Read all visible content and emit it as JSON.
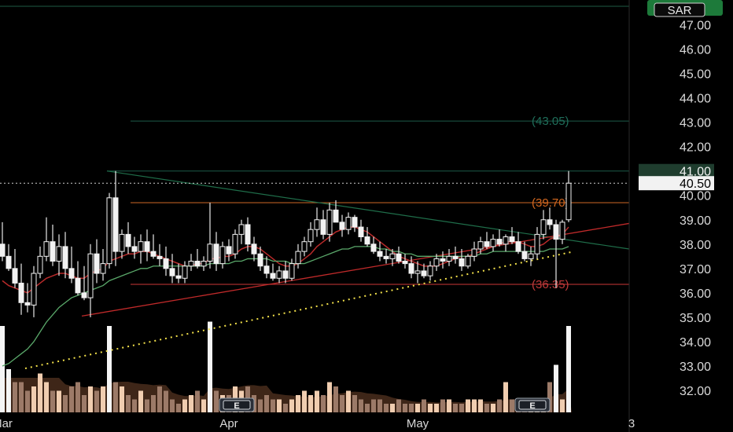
{
  "chart_data": {
    "type": "candlestick",
    "currency": "SAR",
    "ylim": [
      31.0,
      48.0
    ],
    "price_ticks": [
      "32.00",
      "33.00",
      "34.00",
      "35.00",
      "36.00",
      "37.00",
      "38.00",
      "39.00",
      "40.00",
      "41.00",
      "42.00",
      "43.00",
      "44.00",
      "45.00",
      "46.00",
      "47.00"
    ],
    "x_tick_labels": [
      {
        "label": "Mar",
        "bar": 0
      },
      {
        "label": "Apr",
        "bar": 36
      },
      {
        "label": "May",
        "bar": 66
      },
      {
        "label": "3",
        "bar": 100
      }
    ],
    "last_price": "40.50",
    "resistance_label": "41.00",
    "level_labels": [
      {
        "text": "(43.05)",
        "value": 43.05,
        "color": "#1f6e5a"
      },
      {
        "text": "(39.70)",
        "value": 39.7,
        "color": "#d4681f"
      },
      {
        "text": "(36.35)",
        "value": 36.35,
        "color": "#c23a3a"
      }
    ],
    "top_level": 47.75,
    "candles": [
      [
        38.0,
        38.9,
        37.3,
        37.5
      ],
      [
        37.5,
        38.0,
        36.9,
        37.0
      ],
      [
        37.0,
        37.8,
        36.2,
        36.4
      ],
      [
        36.4,
        37.2,
        35.1,
        35.6
      ],
      [
        35.6,
        36.4,
        35.2,
        35.5
      ],
      [
        35.5,
        37.1,
        35.0,
        36.8
      ],
      [
        36.8,
        37.9,
        36.6,
        37.5
      ],
      [
        37.5,
        39.1,
        37.3,
        38.1
      ],
      [
        38.1,
        38.8,
        37.1,
        37.3
      ],
      [
        37.3,
        38.4,
        36.7,
        37.9
      ],
      [
        37.9,
        38.5,
        36.6,
        37.0
      ],
      [
        37.0,
        37.9,
        36.4,
        36.6
      ],
      [
        36.6,
        37.3,
        35.9,
        36.0
      ],
      [
        36.0,
        37.1,
        35.7,
        35.8
      ],
      [
        35.8,
        38.0,
        35.0,
        37.6
      ],
      [
        37.6,
        38.2,
        36.4,
        36.8
      ],
      [
        36.8,
        37.8,
        36.5,
        37.2
      ],
      [
        37.2,
        40.1,
        37.0,
        39.9
      ],
      [
        39.9,
        41.0,
        37.1,
        37.7
      ],
      [
        37.7,
        38.6,
        37.4,
        38.4
      ],
      [
        38.4,
        38.9,
        37.6,
        37.9
      ],
      [
        37.9,
        38.3,
        37.4,
        37.7
      ],
      [
        37.7,
        38.4,
        37.2,
        38.1
      ],
      [
        38.1,
        38.6,
        37.3,
        37.7
      ],
      [
        37.7,
        38.4,
        37.4,
        37.5
      ],
      [
        37.5,
        38.0,
        37.1,
        37.4
      ],
      [
        37.4,
        37.9,
        36.7,
        37.0
      ],
      [
        37.0,
        37.6,
        36.4,
        36.7
      ],
      [
        36.7,
        37.2,
        36.4,
        36.6
      ],
      [
        36.6,
        37.3,
        36.4,
        37.1
      ],
      [
        37.1,
        37.6,
        36.9,
        37.3
      ],
      [
        37.3,
        37.8,
        37.0,
        37.1
      ],
      [
        37.1,
        37.5,
        36.9,
        37.3
      ],
      [
        37.3,
        39.7,
        37.0,
        38.0
      ],
      [
        38.0,
        38.5,
        36.9,
        37.2
      ],
      [
        37.2,
        38.1,
        37.0,
        37.9
      ],
      [
        37.9,
        38.2,
        37.3,
        37.6
      ],
      [
        37.6,
        38.6,
        37.4,
        38.4
      ],
      [
        38.4,
        39.0,
        38.0,
        38.8
      ],
      [
        38.8,
        39.1,
        37.7,
        38.0
      ],
      [
        38.0,
        38.3,
        37.3,
        37.6
      ],
      [
        37.6,
        37.9,
        36.9,
        37.1
      ],
      [
        37.1,
        37.5,
        36.6,
        36.8
      ],
      [
        36.8,
        37.2,
        36.5,
        36.6
      ],
      [
        36.6,
        37.1,
        36.4,
        36.9
      ],
      [
        36.9,
        37.3,
        36.4,
        36.6
      ],
      [
        36.6,
        37.4,
        36.5,
        37.2
      ],
      [
        37.2,
        38.0,
        37.0,
        37.7
      ],
      [
        37.7,
        38.3,
        37.5,
        38.1
      ],
      [
        38.1,
        38.9,
        37.9,
        38.6
      ],
      [
        38.6,
        39.5,
        38.3,
        39.0
      ],
      [
        39.0,
        39.4,
        38.2,
        38.4
      ],
      [
        38.4,
        39.7,
        38.1,
        39.4
      ],
      [
        39.4,
        39.8,
        38.9,
        38.9
      ],
      [
        38.9,
        39.2,
        38.3,
        38.6
      ],
      [
        38.6,
        39.3,
        38.4,
        39.1
      ],
      [
        39.1,
        39.2,
        38.5,
        38.7
      ],
      [
        38.7,
        39.0,
        38.1,
        38.3
      ],
      [
        38.3,
        38.7,
        37.9,
        38.0
      ],
      [
        38.0,
        38.3,
        37.6,
        37.7
      ],
      [
        37.7,
        38.1,
        37.3,
        37.5
      ],
      [
        37.5,
        37.8,
        37.2,
        37.4
      ],
      [
        37.4,
        37.8,
        37.1,
        37.6
      ],
      [
        37.6,
        37.9,
        37.2,
        37.3
      ],
      [
        37.3,
        37.6,
        37.0,
        37.2
      ],
      [
        37.2,
        37.5,
        36.6,
        36.8
      ],
      [
        36.8,
        37.3,
        36.4,
        36.9
      ],
      [
        36.9,
        37.2,
        36.6,
        36.7
      ],
      [
        36.7,
        37.3,
        36.5,
        37.1
      ],
      [
        37.1,
        37.6,
        36.9,
        37.4
      ],
      [
        37.4,
        37.7,
        37.0,
        37.3
      ],
      [
        37.3,
        37.8,
        37.1,
        37.5
      ],
      [
        37.5,
        37.9,
        37.2,
        37.4
      ],
      [
        37.4,
        37.8,
        36.9,
        37.1
      ],
      [
        37.1,
        37.6,
        37.0,
        37.5
      ],
      [
        37.5,
        38.1,
        37.3,
        37.8
      ],
      [
        37.8,
        38.3,
        37.6,
        38.1
      ],
      [
        38.1,
        38.5,
        37.8,
        37.9
      ],
      [
        37.9,
        38.4,
        37.7,
        38.2
      ],
      [
        38.2,
        38.6,
        37.9,
        38.0
      ],
      [
        38.0,
        38.4,
        37.7,
        38.3
      ],
      [
        38.3,
        38.7,
        38.0,
        38.1
      ],
      [
        38.1,
        38.5,
        37.6,
        37.7
      ],
      [
        37.7,
        38.1,
        37.3,
        37.4
      ],
      [
        37.4,
        37.9,
        37.1,
        37.6
      ],
      [
        37.6,
        38.7,
        37.4,
        38.4
      ],
      [
        38.4,
        39.4,
        38.2,
        39.0
      ],
      [
        39.0,
        39.5,
        38.6,
        38.8
      ],
      [
        38.8,
        39.0,
        36.2,
        38.2
      ],
      [
        38.2,
        39.0,
        38.0,
        38.9
      ],
      [
        39.0,
        41.0,
        38.9,
        40.5
      ]
    ],
    "ma_fast": [
      36.5,
      36.3,
      36.2,
      36.1,
      36.0,
      36.2,
      36.4,
      36.6,
      36.7,
      36.8,
      36.8,
      36.7,
      36.6,
      36.6,
      36.8,
      36.9,
      37.0,
      37.3,
      37.4,
      37.5,
      37.6,
      37.6,
      37.7,
      37.7,
      37.6,
      37.5,
      37.4,
      37.3,
      37.2,
      37.1,
      37.1,
      37.2,
      37.2,
      37.4,
      37.4,
      37.5,
      37.5,
      37.6,
      37.8,
      37.9,
      37.9,
      37.8,
      37.6,
      37.4,
      37.2,
      37.1,
      37.1,
      37.2,
      37.4,
      37.6,
      37.9,
      38.1,
      38.3,
      38.5,
      38.6,
      38.7,
      38.7,
      38.6,
      38.5,
      38.3,
      38.1,
      37.9,
      37.7,
      37.5,
      37.4,
      37.3,
      37.2,
      37.1,
      37.1,
      37.1,
      37.2,
      37.3,
      37.4,
      37.5,
      37.5,
      37.6,
      37.7,
      37.8,
      37.9,
      38.0,
      38.1,
      38.1,
      38.1,
      38.0,
      37.9,
      37.9,
      38.0,
      38.2,
      38.3,
      38.4,
      38.7
    ],
    "ma_slow": [
      33.0,
      33.1,
      33.3,
      33.5,
      33.7,
      34.0,
      34.4,
      34.8,
      35.1,
      35.4,
      35.6,
      35.8,
      35.9,
      36.0,
      36.1,
      36.2,
      36.3,
      36.5,
      36.6,
      36.7,
      36.8,
      36.9,
      37.0,
      37.0,
      37.1,
      37.1,
      37.1,
      37.1,
      37.1,
      37.1,
      37.1,
      37.1,
      37.1,
      37.2,
      37.2,
      37.2,
      37.2,
      37.3,
      37.3,
      37.4,
      37.4,
      37.4,
      37.4,
      37.3,
      37.3,
      37.3,
      37.2,
      37.2,
      37.2,
      37.3,
      37.4,
      37.5,
      37.6,
      37.7,
      37.8,
      37.8,
      37.9,
      37.9,
      37.9,
      37.9,
      37.8,
      37.8,
      37.7,
      37.7,
      37.6,
      37.6,
      37.5,
      37.5,
      37.5,
      37.5,
      37.5,
      37.5,
      37.5,
      37.5,
      37.5,
      37.5,
      37.6,
      37.6,
      37.7,
      37.7,
      37.7,
      37.7,
      37.7,
      37.7,
      37.7,
      37.7,
      37.7,
      37.8,
      37.8,
      37.8,
      37.9
    ],
    "volumes": [
      1.0,
      0.5,
      0.35,
      0.35,
      0.25,
      0.3,
      0.45,
      0.35,
      0.25,
      0.25,
      0.2,
      0.3,
      0.35,
      0.2,
      0.3,
      0.25,
      0.3,
      1.0,
      0.35,
      0.3,
      0.2,
      0.15,
      0.25,
      0.15,
      0.2,
      0.3,
      0.25,
      0.15,
      0.1,
      0.15,
      0.2,
      0.25,
      0.15,
      1.05,
      0.25,
      0.2,
      0.2,
      0.3,
      0.25,
      0.3,
      0.2,
      0.15,
      0.2,
      0.15,
      0.15,
      0.1,
      0.15,
      0.2,
      0.25,
      0.2,
      0.25,
      0.2,
      0.35,
      0.3,
      0.2,
      0.25,
      0.2,
      0.15,
      0.1,
      0.15,
      0.15,
      0.1,
      0.1,
      0.15,
      0.1,
      0.1,
      0.1,
      0.15,
      0.1,
      0.1,
      0.15,
      0.15,
      0.1,
      0.1,
      0.15,
      0.15,
      0.15,
      0.1,
      0.1,
      0.15,
      0.35,
      0.15,
      0.15,
      0.1,
      0.1,
      0.1,
      0.1,
      0.35,
      0.55,
      0.15,
      1.0
    ],
    "earnings_markers": [
      {
        "label": "E",
        "bar": 37
      },
      {
        "label": "E",
        "bar": 84
      }
    ]
  }
}
